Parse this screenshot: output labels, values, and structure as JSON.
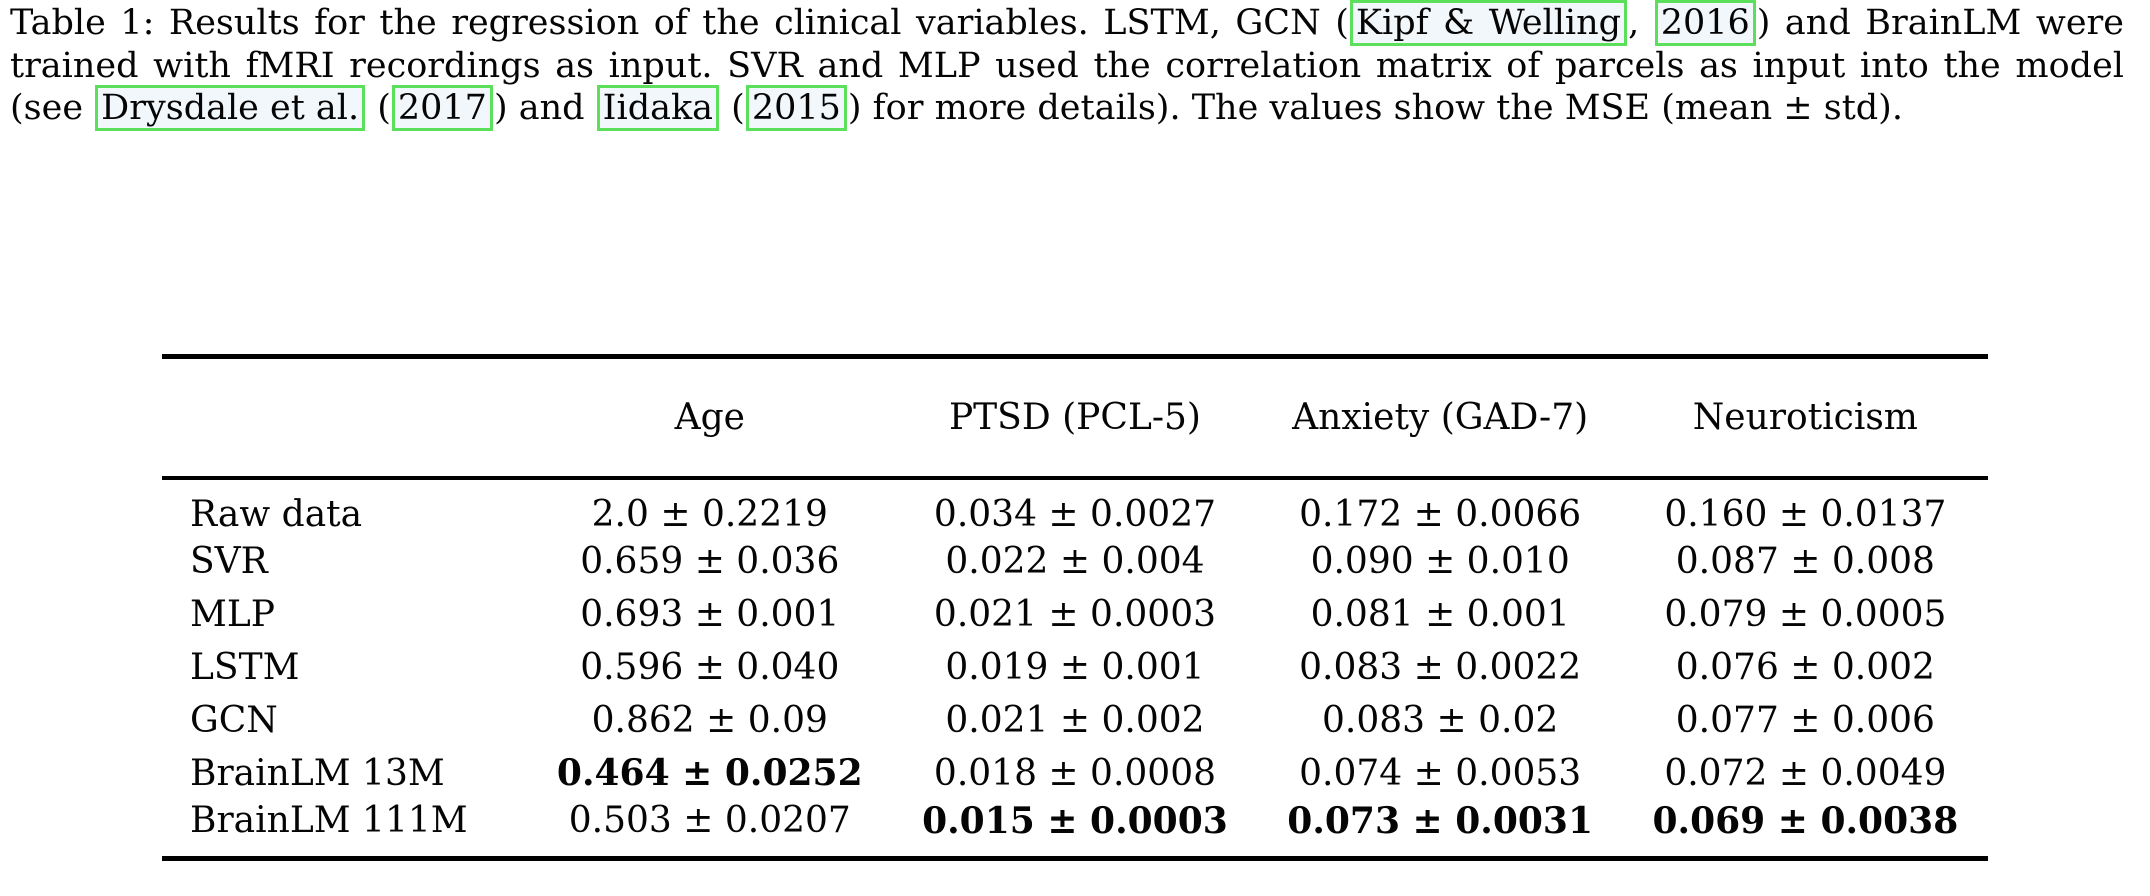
{
  "caption": {
    "segments": {
      "s0": "Table 1: Results for the regression of the clinical variables. LSTM, GCN (",
      "s1": ", ",
      "s2": ") and BrainLM were trained with fMRI recordings as input. SVR and MLP used the correlation matrix of parcels as input into the model (see ",
      "s3": " (",
      "s4": ") and ",
      "s5": " (",
      "s6": ") for more details). The values show the MSE (mean ± std)."
    },
    "citations": {
      "kipf_welling": "Kipf & Welling",
      "year_2016": "2016",
      "drysdale": "Drysdale et al.",
      "year_2017": "2017",
      "iidaka": "Iidaka",
      "year_2015": "2015"
    }
  },
  "table": {
    "title": "Table 1",
    "metric": "MSE (mean ± std)",
    "headers": {
      "label": "",
      "age": "Age",
      "ptsd": "PTSD (PCL-5)",
      "anxiety": "Anxiety (GAD-7)",
      "neuroticism": "Neuroticism"
    },
    "rows": [
      {
        "label": "Raw data",
        "age": "2.0 ± 0.2219",
        "ptsd": "0.034 ± 0.0027",
        "anxiety": "0.172 ± 0.0066",
        "neuroticism": "0.160 ± 0.0137",
        "bold": []
      },
      {
        "label": "SVR",
        "age": "0.659 ± 0.036",
        "ptsd": "0.022 ± 0.004",
        "anxiety": "0.090 ± 0.010",
        "neuroticism": "0.087 ± 0.008",
        "bold": []
      },
      {
        "label": "MLP",
        "age": "0.693 ± 0.001",
        "ptsd": "0.021 ± 0.0003",
        "anxiety": "0.081 ± 0.001",
        "neuroticism": "0.079 ± 0.0005",
        "bold": []
      },
      {
        "label": "LSTM",
        "age": "0.596 ± 0.040",
        "ptsd": "0.019 ± 0.001",
        "anxiety": "0.083 ± 0.0022",
        "neuroticism": "0.076 ± 0.002",
        "bold": []
      },
      {
        "label": "GCN",
        "age": "0.862 ± 0.09",
        "ptsd": "0.021 ± 0.002",
        "anxiety": "0.083 ± 0.02",
        "neuroticism": "0.077 ± 0.006",
        "bold": []
      },
      {
        "label": "BrainLM 13M",
        "age": "0.464 ± 0.0252",
        "ptsd": "0.018 ± 0.0008",
        "anxiety": "0.074 ± 0.0053",
        "neuroticism": "0.072 ± 0.0049",
        "bold": [
          "age"
        ]
      },
      {
        "label": "BrainLM 111M",
        "age": "0.503 ± 0.0207",
        "ptsd": "0.015 ± 0.0003",
        "anxiety": "0.073 ± 0.0031",
        "neuroticism": "0.069 ± 0.0038",
        "bold": [
          "ptsd",
          "anxiety",
          "neuroticism"
        ]
      }
    ]
  },
  "colors": {
    "citation_border": "#5ce05c",
    "citation_fill": "#f2f7fc",
    "text": "#050505",
    "background": "#ffffff",
    "rule": "#000000"
  }
}
